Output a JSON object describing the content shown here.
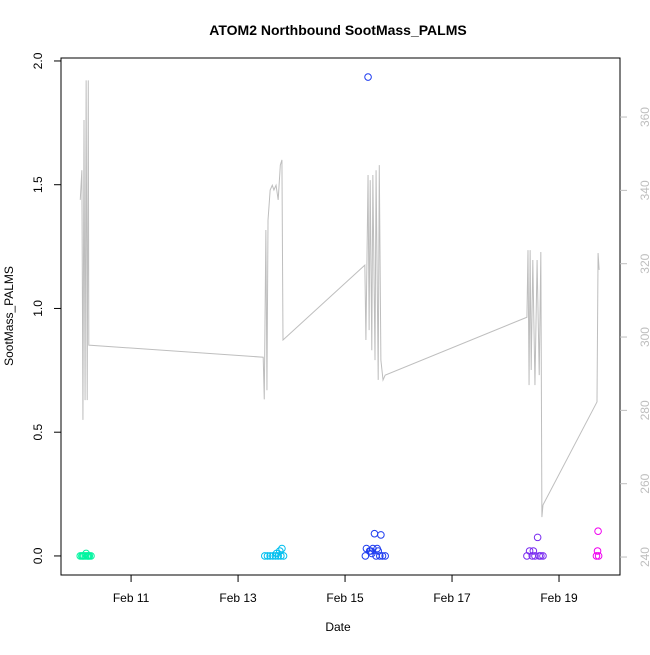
{
  "chart_data": {
    "type": "scatter",
    "title": "ATOM2 Northbound SootMass_PALMS",
    "x_label": "Date",
    "y_label": "SootMass_PALMS",
    "xlim": [
      9.69,
      20.14
    ],
    "xticks": [
      {
        "value": 11,
        "label": "Feb 11"
      },
      {
        "value": 13,
        "label": "Feb 13"
      },
      {
        "value": 15,
        "label": "Feb 15"
      },
      {
        "value": 17,
        "label": "Feb 17"
      },
      {
        "value": 19,
        "label": "Feb 19"
      }
    ],
    "ylim": [
      -0.077,
      2.012
    ],
    "yticks": [
      {
        "value": 0,
        "label": "0.0"
      },
      0.5,
      {
        "value": 1,
        "label": "1.0"
      },
      1.5,
      {
        "value": 2,
        "label": "2.0"
      }
    ],
    "y2lim": [
      235.1,
      376.1
    ],
    "y2ticks": [
      240,
      260,
      280,
      300,
      320,
      340,
      360
    ],
    "y2_color": "#bebebe",
    "series": [
      {
        "type": "line",
        "axis": "y2",
        "color": "#bebebe",
        "x": [
          10.05,
          10.08,
          10.1,
          10.12,
          10.14,
          10.16,
          10.18,
          10.2,
          10.21,
          13.47,
          13.49,
          13.52,
          13.54,
          13.56,
          13.6,
          13.64,
          13.67,
          13.71,
          13.75,
          13.79,
          13.82,
          13.84,
          15.37,
          15.39,
          15.43,
          15.45,
          15.47,
          15.5,
          15.52,
          15.56,
          15.58,
          15.62,
          15.64,
          15.67,
          15.71,
          15.75,
          18.4,
          18.42,
          18.44,
          18.46,
          18.48,
          18.51,
          18.55,
          18.59,
          18.63,
          18.66,
          18.68,
          18.7,
          19.71,
          19.73,
          19.75
        ],
        "values": [
          337.4,
          345.5,
          277.4,
          359.2,
          282.8,
          370,
          282.8,
          370,
          297.8,
          294.5,
          283,
          329.2,
          285.5,
          331.9,
          340.1,
          341.4,
          340.1,
          341.4,
          337.4,
          346.9,
          348.3,
          299.2,
          319.6,
          299.2,
          344.2,
          301.9,
          342.8,
          296.4,
          344.2,
          293.7,
          345.5,
          288.3,
          346.9,
          293.7,
          288.3,
          289.6,
          305.4,
          323.7,
          286.9,
          323.7,
          291,
          321,
          286.9,
          321,
          289.6,
          323.2,
          250.9,
          254.2,
          282.3,
          322.9,
          318.3
        ]
      },
      {
        "type": "scatter",
        "color": "#00f5a0",
        "x": [
          10.05,
          10.08,
          10.1,
          10.12,
          10.15,
          10.18,
          10.2,
          10.22,
          10.25,
          10.16
        ],
        "values": [
          0,
          0,
          0,
          0,
          0,
          0,
          0,
          0,
          0,
          0.01
        ]
      },
      {
        "type": "scatter",
        "color": "#00bfef",
        "x": [
          13.5,
          13.55,
          13.6,
          13.65,
          13.7,
          13.75,
          13.8,
          13.85,
          13.72,
          13.78,
          13.82
        ],
        "values": [
          0,
          0,
          0,
          0,
          0,
          0,
          0,
          0,
          0.01,
          0.02,
          0.03
        ]
      },
      {
        "type": "scatter",
        "color": "#1e3cf0",
        "x": [
          15.38,
          15.4,
          15.43,
          15.46,
          15.5,
          15.55,
          15.58,
          15.6,
          15.62,
          15.65,
          15.67,
          15.7,
          15.75,
          15.48,
          15.52
        ],
        "values": [
          0,
          0.03,
          1.935,
          0.02,
          0.01,
          0.09,
          0,
          0.03,
          0.02,
          0,
          0.085,
          0,
          0,
          0.02,
          0.03
        ]
      },
      {
        "type": "scatter",
        "color": "#7a2cf0",
        "x": [
          18.4,
          18.45,
          18.5,
          18.52,
          18.55,
          18.6,
          18.63,
          18.66,
          18.7
        ],
        "values": [
          0,
          0.02,
          0,
          0.02,
          0,
          0.075,
          0,
          0,
          0
        ]
      },
      {
        "type": "scatter",
        "color": "#f000f0",
        "x": [
          19.7,
          19.72,
          19.73,
          19.74
        ],
        "values": [
          0,
          0.02,
          0.1,
          0
        ]
      }
    ]
  }
}
